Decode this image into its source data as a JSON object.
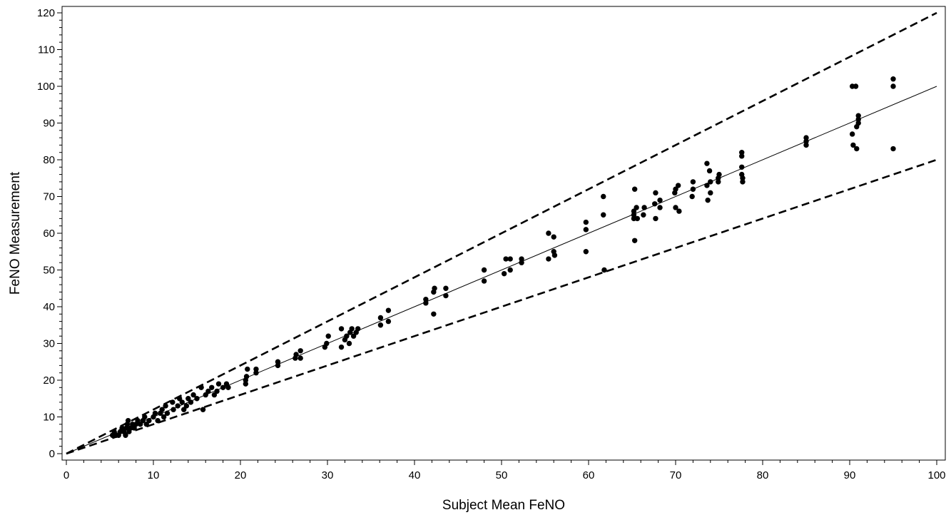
{
  "chart_data": {
    "type": "scatter",
    "title": "",
    "xlabel": "Subject Mean FeNO",
    "ylabel": "FeNO Measurement",
    "xlim": [
      0,
      100
    ],
    "ylim": [
      0,
      120
    ],
    "x_ticks": [
      "0",
      "10",
      "20",
      "30",
      "40",
      "50",
      "60",
      "70",
      "80",
      "90",
      "100"
    ],
    "y_ticks": [
      "0",
      "10",
      "20",
      "30",
      "40",
      "50",
      "60",
      "70",
      "80",
      "90",
      "100",
      "110",
      "120"
    ],
    "grid": false,
    "legend": "none",
    "marker_color": "#000000",
    "reference_lines": [
      {
        "style": "solid",
        "points": [
          [
            0,
            0
          ],
          [
            100,
            100
          ]
        ]
      },
      {
        "style": "dashed",
        "points": [
          [
            0,
            0
          ],
          [
            100,
            120
          ]
        ]
      },
      {
        "style": "dashed",
        "points": [
          [
            0,
            0
          ],
          [
            100,
            80
          ]
        ]
      }
    ],
    "points": [
      [
        5.3,
        5
      ],
      [
        5.5,
        6
      ],
      [
        5.7,
        5
      ],
      [
        6.0,
        5
      ],
      [
        6.2,
        6
      ],
      [
        6.4,
        7
      ],
      [
        6.6,
        6
      ],
      [
        6.8,
        5
      ],
      [
        6.9,
        7
      ],
      [
        7.0,
        8
      ],
      [
        7.1,
        9
      ],
      [
        7.2,
        6
      ],
      [
        7.4,
        7
      ],
      [
        7.6,
        8
      ],
      [
        7.8,
        7
      ],
      [
        8.0,
        8
      ],
      [
        8.2,
        9
      ],
      [
        8.5,
        8
      ],
      [
        8.8,
        9
      ],
      [
        9.0,
        10
      ],
      [
        9.2,
        8
      ],
      [
        9.5,
        9
      ],
      [
        10.0,
        10
      ],
      [
        10.2,
        11
      ],
      [
        10.5,
        9
      ],
      [
        10.8,
        11
      ],
      [
        11.0,
        12
      ],
      [
        11.2,
        10
      ],
      [
        11.4,
        13
      ],
      [
        11.6,
        11
      ],
      [
        12.2,
        14
      ],
      [
        12.3,
        12
      ],
      [
        12.8,
        13
      ],
      [
        13.0,
        15
      ],
      [
        13.3,
        14
      ],
      [
        13.5,
        12
      ],
      [
        13.8,
        13
      ],
      [
        14.0,
        15
      ],
      [
        14.3,
        14
      ],
      [
        14.6,
        16
      ],
      [
        15.0,
        15
      ],
      [
        15.5,
        18
      ],
      [
        15.7,
        12
      ],
      [
        16.0,
        16
      ],
      [
        16.3,
        17
      ],
      [
        16.7,
        18
      ],
      [
        17.0,
        16
      ],
      [
        17.3,
        17
      ],
      [
        17.5,
        19
      ],
      [
        18.0,
        18
      ],
      [
        18.4,
        19
      ],
      [
        18.6,
        18
      ],
      [
        20.6,
        19
      ],
      [
        20.7,
        21
      ],
      [
        20.8,
        23
      ],
      [
        20.6,
        20
      ],
      [
        21.8,
        22
      ],
      [
        21.8,
        23
      ],
      [
        24.3,
        24
      ],
      [
        24.3,
        25
      ],
      [
        26.3,
        26
      ],
      [
        26.4,
        27
      ],
      [
        26.9,
        28
      ],
      [
        26.9,
        26
      ],
      [
        29.7,
        29
      ],
      [
        29.9,
        30
      ],
      [
        30.1,
        32
      ],
      [
        31.6,
        34
      ],
      [
        31.6,
        29
      ],
      [
        32.0,
        31
      ],
      [
        32.2,
        32
      ],
      [
        32.5,
        30
      ],
      [
        32.6,
        33
      ],
      [
        32.8,
        34
      ],
      [
        33.0,
        32
      ],
      [
        33.3,
        33
      ],
      [
        33.5,
        34
      ],
      [
        36.1,
        35
      ],
      [
        36.1,
        37
      ],
      [
        37.0,
        36
      ],
      [
        37.0,
        39
      ],
      [
        41.3,
        41
      ],
      [
        41.3,
        42
      ],
      [
        42.2,
        44
      ],
      [
        42.2,
        38
      ],
      [
        42.3,
        45
      ],
      [
        43.6,
        43
      ],
      [
        43.6,
        45
      ],
      [
        48.0,
        47
      ],
      [
        48.0,
        50
      ],
      [
        50.3,
        49
      ],
      [
        50.5,
        53
      ],
      [
        51.0,
        50
      ],
      [
        51.0,
        53
      ],
      [
        52.3,
        52
      ],
      [
        52.3,
        53
      ],
      [
        55.4,
        53
      ],
      [
        55.4,
        60
      ],
      [
        56.0,
        59
      ],
      [
        56.0,
        55
      ],
      [
        56.1,
        54
      ],
      [
        59.7,
        55
      ],
      [
        59.7,
        61
      ],
      [
        59.7,
        63
      ],
      [
        61.7,
        65
      ],
      [
        61.7,
        70
      ],
      [
        61.8,
        50
      ],
      [
        65.2,
        64
      ],
      [
        65.2,
        65
      ],
      [
        65.2,
        66
      ],
      [
        65.3,
        58
      ],
      [
        65.3,
        72
      ],
      [
        65.5,
        67
      ],
      [
        65.6,
        64
      ],
      [
        66.3,
        65
      ],
      [
        66.4,
        67
      ],
      [
        67.6,
        68
      ],
      [
        67.7,
        64
      ],
      [
        67.7,
        71
      ],
      [
        68.2,
        69
      ],
      [
        68.2,
        67
      ],
      [
        69.9,
        71
      ],
      [
        70.0,
        72
      ],
      [
        70.0,
        67
      ],
      [
        70.3,
        73
      ],
      [
        70.4,
        66
      ],
      [
        71.9,
        70
      ],
      [
        72.0,
        72
      ],
      [
        72.0,
        74
      ],
      [
        73.6,
        79
      ],
      [
        73.6,
        73
      ],
      [
        73.7,
        69
      ],
      [
        73.9,
        77
      ],
      [
        74.0,
        71
      ],
      [
        74.0,
        74
      ],
      [
        74.9,
        75
      ],
      [
        74.9,
        74
      ],
      [
        75.0,
        76
      ],
      [
        77.6,
        82
      ],
      [
        77.6,
        81
      ],
      [
        77.6,
        78
      ],
      [
        77.6,
        76
      ],
      [
        77.7,
        74
      ],
      [
        77.7,
        75
      ],
      [
        85.0,
        84
      ],
      [
        85.0,
        85
      ],
      [
        85.0,
        86
      ],
      [
        90.3,
        100
      ],
      [
        90.3,
        87
      ],
      [
        90.4,
        84
      ],
      [
        90.7,
        100
      ],
      [
        90.8,
        83
      ],
      [
        90.8,
        89
      ],
      [
        91.0,
        90
      ],
      [
        91.0,
        91
      ],
      [
        91.0,
        92
      ],
      [
        95.0,
        102
      ],
      [
        95.0,
        100
      ],
      [
        95.0,
        83
      ]
    ]
  }
}
